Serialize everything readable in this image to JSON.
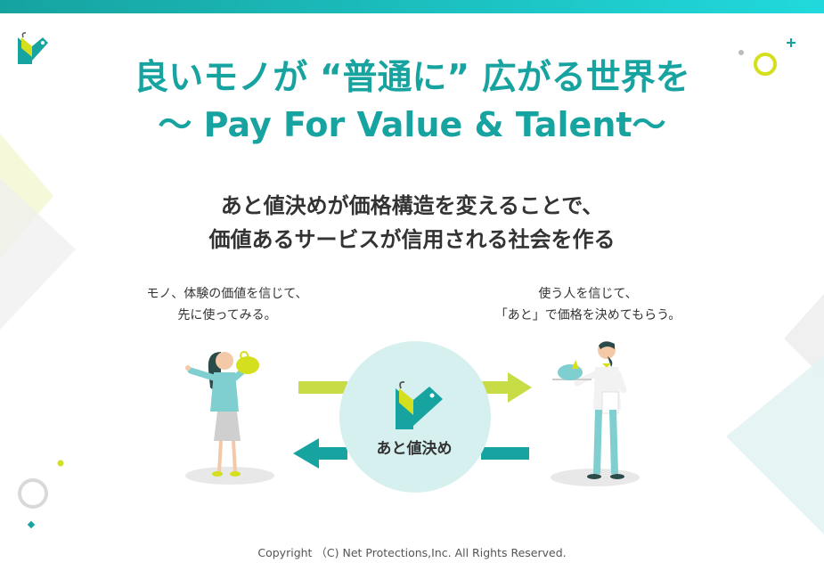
{
  "title": {
    "line1": "良いモノが “普通に” 広がる世界を",
    "line2": "〜 Pay For Value & Talent〜"
  },
  "subtitle": {
    "line1": "あと値決めが価格構造を変えることで、",
    "line2": "価値あるサービスが信用される社会を作る"
  },
  "captions": {
    "left": [
      "モノ、体験の価値を信じて、",
      "先に使ってみる。"
    ],
    "right": [
      "使う人を信じて、",
      "「あと」で価格を決めてもらう。"
    ]
  },
  "center": {
    "label": "あと値決め"
  },
  "footer": {
    "copyright": "Copyright （C) Net Protections,Inc. All Rights Reserved."
  },
  "colors": {
    "teal": "#17a3a0",
    "teal_light": "#d6f0f0",
    "lime": "#c8dc46",
    "yellow": "#d4df1e",
    "text": "#333333"
  },
  "icons": [
    "brand-logo-icon",
    "plus-icon",
    "circle-ring-icon",
    "arrow-right-icon",
    "arrow-left-icon"
  ]
}
